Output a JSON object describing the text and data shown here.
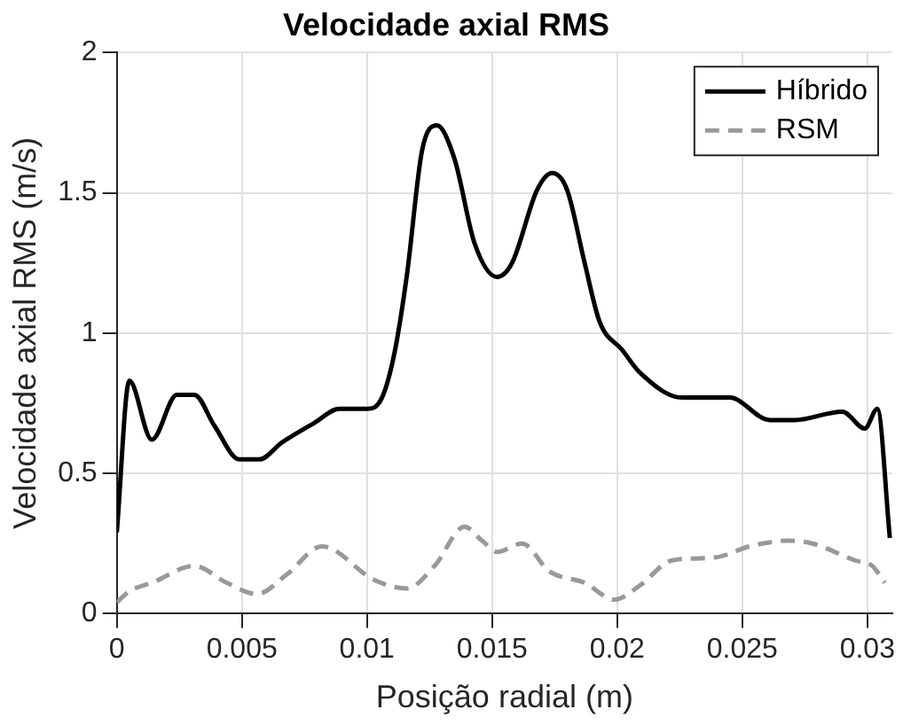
{
  "chart_data": {
    "type": "line",
    "title": "Velocidade axial RMS",
    "xlabel": "Posição radial (m)",
    "ylabel": "Velocidade axial RMS (m/s)",
    "xlim": [
      0,
      0.031
    ],
    "ylim": [
      0,
      2
    ],
    "xticks": [
      0,
      0.005,
      0.01,
      0.015,
      0.02,
      0.025,
      0.03
    ],
    "yticks": [
      0,
      0.5,
      1,
      1.5,
      2
    ],
    "grid": true,
    "legend": "top right",
    "marker": "none",
    "series": [
      {
        "name": "Híbrido",
        "color": "#000000",
        "line_style": "solid",
        "x": [
          0,
          0.0005,
          0.0014,
          0.0024,
          0.0031,
          0.0039,
          0.0049,
          0.0057,
          0.0066,
          0.0079,
          0.0089,
          0.01,
          0.0106,
          0.0111,
          0.0116,
          0.0122,
          0.0128,
          0.0135,
          0.0143,
          0.0152,
          0.0158,
          0.0168,
          0.0174,
          0.018,
          0.0187,
          0.0193,
          0.0202,
          0.0209,
          0.0226,
          0.0245,
          0.0261,
          0.0271,
          0.029,
          0.0299,
          0.0304,
          0.0309
        ],
        "values": [
          0.29,
          0.83,
          0.62,
          0.78,
          0.78,
          0.67,
          0.55,
          0.55,
          0.61,
          0.68,
          0.73,
          0.73,
          0.77,
          0.93,
          1.21,
          1.65,
          1.74,
          1.62,
          1.32,
          1.2,
          1.25,
          1.51,
          1.57,
          1.51,
          1.25,
          1.04,
          0.94,
          0.86,
          0.77,
          0.77,
          0.69,
          0.69,
          0.72,
          0.66,
          0.73,
          0.27
        ]
      },
      {
        "name": "RSM",
        "color": "#999999",
        "line_style": "dashed",
        "x": [
          0,
          0.0005,
          0.0014,
          0.0031,
          0.0044,
          0.0056,
          0.0068,
          0.0082,
          0.0103,
          0.0116,
          0.0127,
          0.0139,
          0.0146,
          0.0152,
          0.0162,
          0.0173,
          0.0187,
          0.0199,
          0.0209,
          0.0222,
          0.0239,
          0.0253,
          0.0268,
          0.0278,
          0.0295,
          0.0302,
          0.0307
        ],
        "values": [
          0.04,
          0.08,
          0.11,
          0.17,
          0.11,
          0.07,
          0.14,
          0.24,
          0.12,
          0.09,
          0.17,
          0.31,
          0.26,
          0.22,
          0.25,
          0.15,
          0.11,
          0.05,
          0.1,
          0.19,
          0.2,
          0.24,
          0.26,
          0.25,
          0.19,
          0.17,
          0.11
        ]
      }
    ]
  }
}
